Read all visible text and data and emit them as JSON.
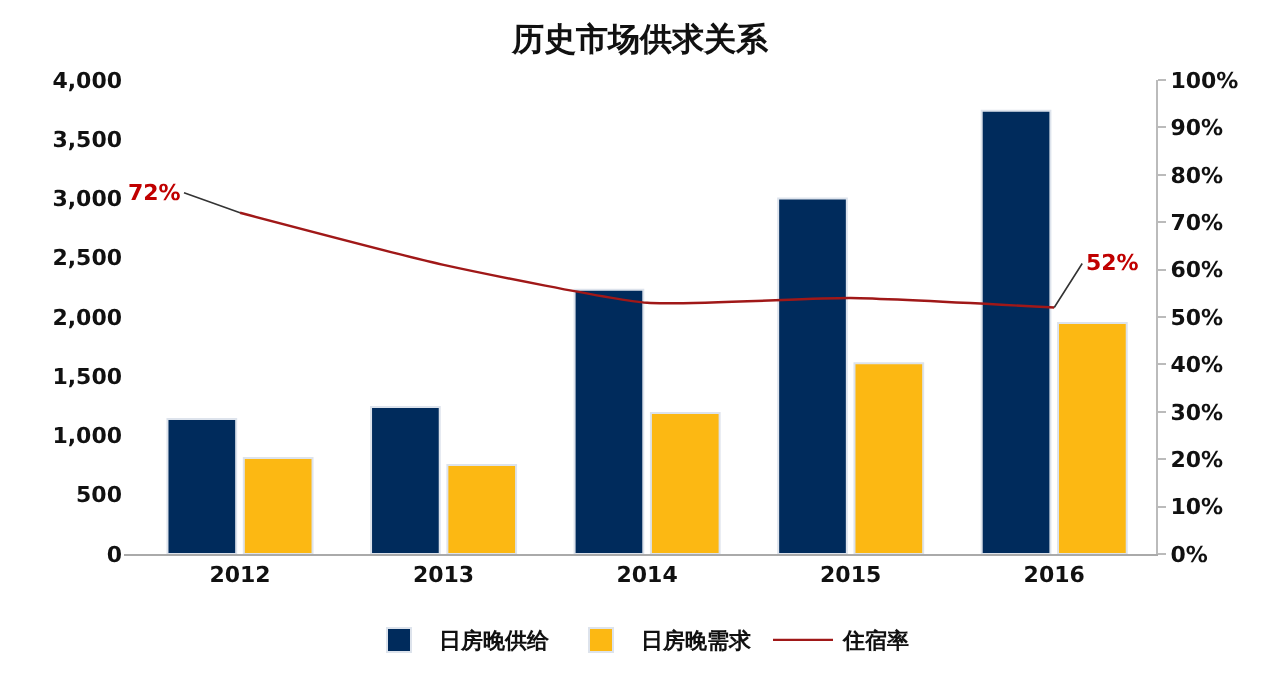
{
  "chart_data": {
    "type": "bar",
    "title": "历史市场供求关系",
    "categories": [
      "2012",
      "2013",
      "2014",
      "2015",
      "2016"
    ],
    "series": [
      {
        "name": "日房晚供给",
        "color": "#002b5c",
        "values": [
          1140,
          1240,
          2230,
          3000,
          3740
        ]
      },
      {
        "name": "日房晚需求",
        "color": "#fcb813",
        "values": [
          810,
          750,
          1190,
          1610,
          1950
        ]
      },
      {
        "name": "住宿率",
        "type": "line",
        "axis": "y2",
        "color": "#a01818",
        "values": [
          72,
          61,
          53,
          54,
          52
        ],
        "value_labels": [
          "72%",
          null,
          null,
          null,
          "52%"
        ]
      }
    ],
    "ylim": [
      0,
      4000
    ],
    "yticks": [
      0,
      {
        "value": 500,
        "label": "500"
      },
      {
        "value": 1000,
        "label": "1,000"
      },
      {
        "value": 1500,
        "label": "1,500"
      },
      {
        "value": 2000,
        "label": "2,000"
      },
      {
        "value": 2500,
        "label": "2,500"
      },
      {
        "value": 3000,
        "label": "3,000"
      },
      {
        "value": 3500,
        "label": "3,500"
      },
      {
        "value": 4000,
        "label": "4,000"
      }
    ],
    "y2lim": [
      0,
      100
    ],
    "y2ticks": [
      {
        "value": 0,
        "label": "0%"
      },
      {
        "value": 10,
        "label": "10%"
      },
      {
        "value": 20,
        "label": "20%"
      },
      {
        "value": 30,
        "label": "30%"
      },
      {
        "value": 40,
        "label": "40%"
      },
      {
        "value": 50,
        "label": "50%"
      },
      {
        "value": 60,
        "label": "60%"
      },
      {
        "value": 70,
        "label": "70%"
      },
      {
        "value": 80,
        "label": "80%"
      },
      {
        "value": 90,
        "label": "90%"
      },
      {
        "value": 100,
        "label": "100%"
      }
    ],
    "grid": false,
    "legend": "bottom",
    "marker": "none",
    "line_style": "solid"
  }
}
